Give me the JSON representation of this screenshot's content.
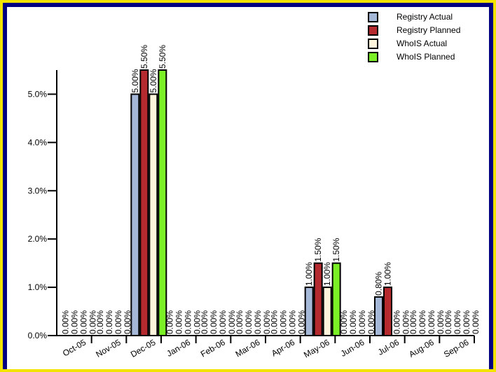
{
  "colors": {
    "frame_border": "#f2e400",
    "frame_inner": "#000080",
    "background": "#ffffff",
    "axis": "#000000",
    "registry_actual": "#a6b8d8",
    "registry_planned": "#b52a2f",
    "whois_actual": "#fff5dc",
    "whois_planned": "#7cf027"
  },
  "chart_data": {
    "type": "bar",
    "categories": [
      "Oct-05",
      "Nov-05",
      "Dec-05",
      "Jan-06",
      "Feb-06",
      "Mar-06",
      "Apr-06",
      "May-06",
      "Jun-06",
      "Jul-06",
      "Aug-06",
      "Sep-06"
    ],
    "series": [
      {
        "name": "Registry Actual",
        "color": "#a6b8d8",
        "values": [
          0,
          0,
          5.0,
          0,
          0,
          0,
          0,
          1.0,
          0,
          0.8,
          0,
          0
        ],
        "labels": [
          "0.00%",
          "0.00%",
          "5.00%",
          "0.00%",
          "0.00%",
          "0.00%",
          "0.00%",
          "1.00%",
          "0.00%",
          "0.80%",
          "0.00%",
          "0.00%"
        ]
      },
      {
        "name": "Registry Planned",
        "color": "#b52a2f",
        "values": [
          0,
          0,
          5.5,
          0,
          0,
          0,
          0,
          1.5,
          0,
          1.0,
          0,
          0
        ],
        "labels": [
          "0.00%",
          "0.00%",
          "5.50%",
          "0.00%",
          "0.00%",
          "0.00%",
          "0.00%",
          "1.50%",
          "0.00%",
          "1.00%",
          "0.00%",
          "0.00%"
        ]
      },
      {
        "name": "WhoIS Actual",
        "color": "#fff5dc",
        "values": [
          0,
          0,
          5.0,
          0,
          0,
          0,
          0,
          1.0,
          0,
          0,
          0,
          0
        ],
        "labels": [
          "0.00%",
          "0.00%",
          "5.00%",
          "0.00%",
          "0.00%",
          "0.00%",
          "0.00%",
          "1.00%",
          "0.00%",
          "0.00%",
          "0.00%",
          "0.00%"
        ]
      },
      {
        "name": "WhoIS Planned",
        "color": "#7cf027",
        "values": [
          0,
          0,
          5.5,
          0,
          0,
          0,
          0,
          1.5,
          0,
          0,
          0,
          0
        ],
        "labels": [
          "0.00%",
          "0.00%",
          "5.50%",
          "0.00%",
          "0.00%",
          "0.00%",
          "0.00%",
          "1.50%",
          "0.00%",
          "0.00%",
          "0.00%",
          "0.00%"
        ]
      }
    ],
    "yticks": [
      0,
      1,
      2,
      3,
      4,
      5
    ],
    "ytick_labels": [
      "0.0%",
      "1.0%",
      "2.0%",
      "3.0%",
      "4.0%",
      "5.0%"
    ],
    "ylim": [
      0,
      5.5
    ],
    "title": "",
    "xlabel": "",
    "ylabel": "",
    "grid": false,
    "legend_position": "top-right"
  }
}
